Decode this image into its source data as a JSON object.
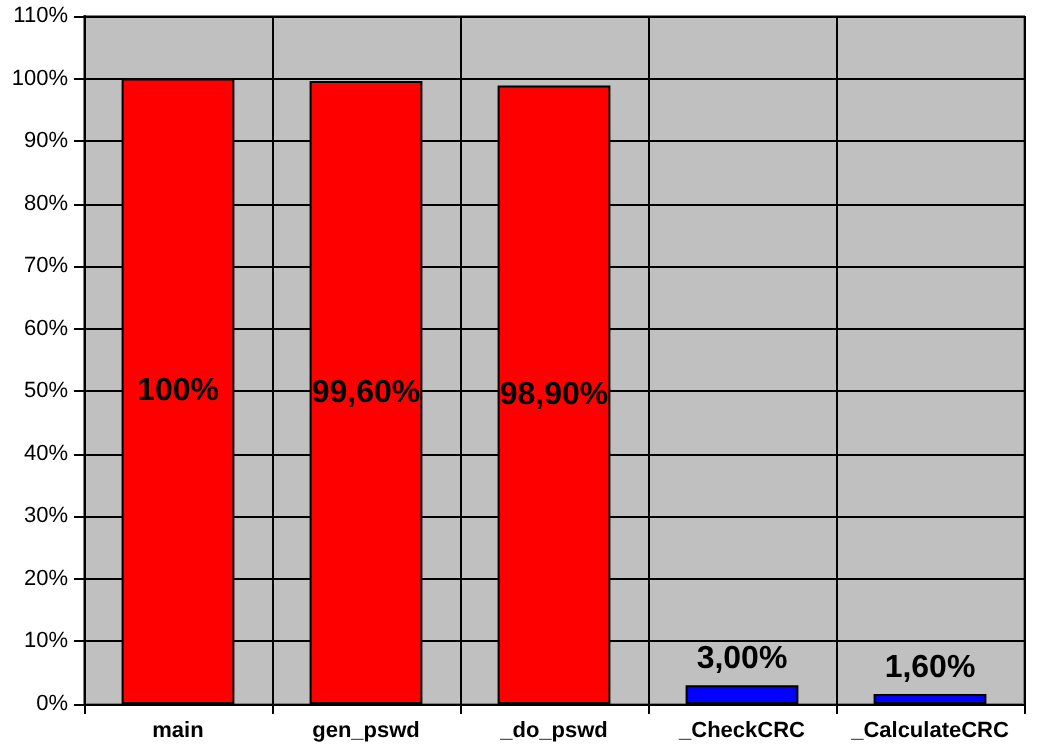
{
  "chart_data": {
    "type": "bar",
    "categories": [
      "main",
      "gen_pswd",
      "_do_pswd",
      "_CheckCRC",
      "_CalculateCRC"
    ],
    "values": [
      100,
      99.6,
      98.9,
      3.0,
      1.6
    ],
    "colors": [
      "#ff0000",
      "#ff0000",
      "#ff0000",
      "#0000ff",
      "#0000ff"
    ],
    "value_labels": [
      "100%",
      "99,60%",
      "98,90%",
      "3,00%",
      "1,60%"
    ],
    "ylim": [
      0,
      110
    ],
    "yticks": [
      {
        "value": 0,
        "label": "0%"
      },
      {
        "value": 10,
        "label": "10%"
      },
      {
        "value": 20,
        "label": "20%"
      },
      {
        "value": 30,
        "label": "30%"
      },
      {
        "value": 40,
        "label": "40%"
      },
      {
        "value": 50,
        "label": "50%"
      },
      {
        "value": 60,
        "label": "60%"
      },
      {
        "value": 70,
        "label": "70%"
      },
      {
        "value": 80,
        "label": "80%"
      },
      {
        "value": 90,
        "label": "90%"
      },
      {
        "value": 100,
        "label": "100%"
      },
      {
        "value": 110,
        "label": "110%"
      }
    ],
    "grid": true
  }
}
